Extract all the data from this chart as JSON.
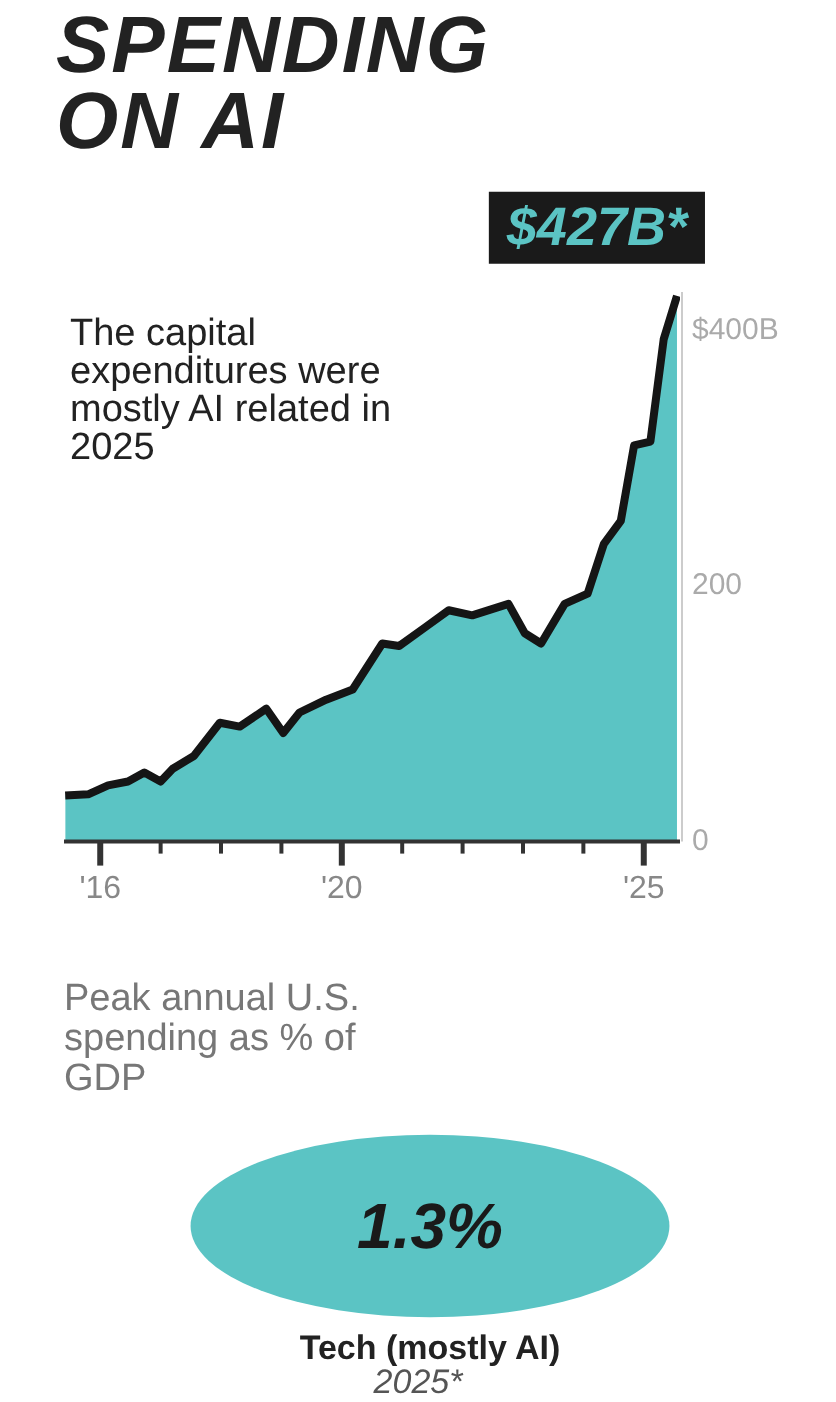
{
  "chart_data": [
    {
      "type": "area",
      "title": "SPENDING ON AI",
      "x": [
        2015.42,
        2015.8,
        2016.13,
        2016.46,
        2016.73,
        2017.0,
        2017.2,
        2017.55,
        2017.98,
        2018.31,
        2018.75,
        2019.03,
        2019.3,
        2019.74,
        2020.18,
        2020.67,
        2020.95,
        2021.39,
        2021.77,
        2022.16,
        2022.76,
        2023.03,
        2023.3,
        2023.69,
        2024.07,
        2024.34,
        2024.62,
        2024.84,
        2025.11,
        2025.33,
        2025.55
      ],
      "series": [
        {
          "color": "#5bc4c4",
          "values": [
            36,
            37,
            44,
            47,
            54,
            47,
            57,
            67,
            93,
            90,
            104,
            85,
            101,
            111,
            119,
            155,
            153,
            168,
            181,
            177,
            186,
            163,
            155,
            186,
            194,
            233,
            251,
            310,
            313,
            393,
            427
          ]
        }
      ],
      "xlim": [
        2015.4,
        2025.6
      ],
      "xticks": [
        {
          "value": 2016,
          "label": "'16"
        },
        {
          "value": 2017,
          "label": null
        },
        {
          "value": 2018,
          "label": null
        },
        {
          "value": 2019,
          "label": null
        },
        {
          "value": 2020,
          "label": "'20"
        },
        {
          "value": 2021,
          "label": null
        },
        {
          "value": 2022,
          "label": null
        },
        {
          "value": 2023,
          "label": null
        },
        {
          "value": 2024,
          "label": null
        },
        {
          "value": 2025,
          "label": "'25"
        }
      ],
      "ylim": [
        0,
        430
      ],
      "yticks": [
        0,
        200,
        {
          "value": 400,
          "label": "$400B"
        }
      ],
      "annotations": [
        {
          "text": "$427B*",
          "x": 2025.55,
          "y": 427
        },
        "The capital expenditures were mostly AI related in 2025"
      ]
    },
    {
      "type": "other",
      "title": "Peak annual U.S. spending as % of GDP",
      "categories": [
        "Tech (mostly AI)"
      ],
      "values": [
        1.3
      ],
      "value_labels": [
        "1.3%"
      ],
      "colors": [
        "#5bc4c4"
      ],
      "annotations": [
        "2025*"
      ]
    }
  ]
}
